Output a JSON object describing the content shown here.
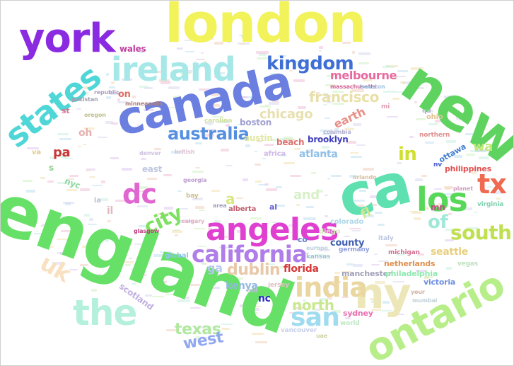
{
  "words": [
    {
      "text": "london",
      "color": "#f2f25a"
    },
    {
      "text": "york",
      "color": "#8a2be2"
    },
    {
      "text": "new",
      "color": "#5fd35f"
    },
    {
      "text": "england",
      "color": "#66e066"
    },
    {
      "text": "canada",
      "color": "#6a7fe0"
    },
    {
      "text": "states",
      "color": "#4fd6d6"
    },
    {
      "text": "ireland",
      "color": "#a6e8e8"
    },
    {
      "text": "ca",
      "color": "#5ee0b0"
    },
    {
      "text": "ontario",
      "color": "#b8ee8a"
    },
    {
      "text": "angeles",
      "color": "#e040d0"
    },
    {
      "text": "california",
      "color": "#b07ee8"
    },
    {
      "text": "los",
      "color": "#58d858"
    },
    {
      "text": "ny",
      "color": "#ece6b8"
    },
    {
      "text": "the",
      "color": "#b4f0dc"
    },
    {
      "text": "india",
      "color": "#ead6a0"
    },
    {
      "text": "kingdom",
      "color": "#3f6fd6"
    },
    {
      "text": "australia",
      "color": "#5590e0"
    },
    {
      "text": "dc",
      "color": "#e066d0"
    },
    {
      "text": "city",
      "color": "#7ee060"
    },
    {
      "text": "tx",
      "color": "#f06a50"
    },
    {
      "text": "south",
      "color": "#bfe050"
    },
    {
      "text": "san",
      "color": "#a0dcf0"
    },
    {
      "text": "francisco",
      "color": "#e8e0a8"
    },
    {
      "text": "chicago",
      "color": "#e8e0b0"
    },
    {
      "text": "in",
      "color": "#d0e030"
    },
    {
      "text": "of",
      "color": "#a0e8d8"
    },
    {
      "text": "texas",
      "color": "#b0e8a0"
    },
    {
      "text": "west",
      "color": "#90a8f0"
    },
    {
      "text": "dublin",
      "color": "#e8c8a8"
    },
    {
      "text": "north",
      "color": "#c8e890"
    },
    {
      "text": "uk",
      "color": "#f8e0c0"
    },
    {
      "text": "pa",
      "color": "#c83838"
    },
    {
      "text": "wa",
      "color": "#c0e878"
    },
    {
      "text": "melbourne",
      "color": "#e868a0"
    },
    {
      "text": "earth",
      "color": "#e89088"
    },
    {
      "text": "and",
      "color": "#d8f0c8"
    },
    {
      "text": "a",
      "color": "#d8e880"
    },
    {
      "text": "ga",
      "color": "#b8c8f0"
    },
    {
      "text": "florida",
      "color": "#d83838"
    },
    {
      "text": "kenya",
      "color": "#90b8e0"
    },
    {
      "text": "nc",
      "color": "#3030c0"
    },
    {
      "text": "boston",
      "color": "#a0a0d0"
    },
    {
      "text": "atlanta",
      "color": "#90c0e8"
    },
    {
      "text": "austin",
      "color": "#e0e8a0"
    },
    {
      "text": "beach",
      "color": "#e07070"
    },
    {
      "text": "brooklyn",
      "color": "#4040c0"
    },
    {
      "text": "county",
      "color": "#4060b0"
    },
    {
      "text": "seattle",
      "color": "#e8d080"
    },
    {
      "text": "netherlands",
      "color": "#e09050"
    },
    {
      "text": "manchester",
      "color": "#a0a0b8"
    },
    {
      "text": "philadelphia",
      "color": "#90e8b0"
    },
    {
      "text": "victoria",
      "color": "#7090e0"
    },
    {
      "text": "sydney",
      "color": "#e870b0"
    },
    {
      "text": "scotland",
      "color": "#c0b0e0"
    },
    {
      "text": "philippines",
      "color": "#e05050"
    },
    {
      "text": "ottawa",
      "color": "#4080d0"
    },
    {
      "text": "wales",
      "color": "#c040a0"
    },
    {
      "text": "oh",
      "color": "#e8b0b0"
    },
    {
      "text": "on",
      "color": "#e07060"
    },
    {
      "text": "mn",
      "color": "#c05080"
    },
    {
      "text": "fl",
      "color": "#d0e890"
    },
    {
      "text": "il",
      "color": "#e0b8c0"
    },
    {
      "text": "nyc",
      "color": "#90d8a0"
    },
    {
      "text": "colorado",
      "color": "#b0d8e8"
    },
    {
      "text": "alberta",
      "color": "#c06070"
    },
    {
      "text": "al",
      "color": "#6060d0"
    },
    {
      "text": "michigan",
      "color": "#d07090"
    },
    {
      "text": "kansas",
      "color": "#a0c0d0"
    },
    {
      "text": "virginia",
      "color": "#80d0b0"
    },
    {
      "text": "ohio",
      "color": "#e0c090"
    },
    {
      "text": "africa",
      "color": "#d0b8e8"
    },
    {
      "text": "germany",
      "color": "#90a0e0"
    },
    {
      "text": "vancouver",
      "color": "#c8d0e8"
    },
    {
      "text": "world",
      "color": "#c0e8c8"
    },
    {
      "text": "diego",
      "color": "#d8e8c0"
    },
    {
      "text": "md",
      "color": "#c0c0d8"
    },
    {
      "text": "jersey",
      "color": "#e0c0c0"
    },
    {
      "text": "carolina",
      "color": "#d0e0a0"
    },
    {
      "text": "co",
      "color": "#6080d0"
    },
    {
      "text": "global",
      "color": "#90c8e8"
    },
    {
      "text": "northern",
      "color": "#e09090"
    },
    {
      "text": "nv",
      "color": "#5060d0"
    },
    {
      "text": "east",
      "color": "#c0c8e0"
    },
    {
      "text": "s",
      "color": "#90d090"
    },
    {
      "text": "st",
      "color": "#e07090"
    },
    {
      "text": "va",
      "color": "#e0d090"
    },
    {
      "text": "planet",
      "color": "#d0a0c0"
    },
    {
      "text": "vegas",
      "color": "#c0e0c0"
    },
    {
      "text": "glasgow",
      "color": "#c04080"
    },
    {
      "text": "bay",
      "color": "#d0c090"
    },
    {
      "text": "calgary",
      "color": "#e0b0c0"
    },
    {
      "text": "area",
      "color": "#a0a0c0"
    },
    {
      "text": "italy",
      "color": "#c0c8e0"
    },
    {
      "text": "mumbai",
      "color": "#c0d0d8"
    },
    {
      "text": "denver",
      "color": "#d0c0e0"
    },
    {
      "text": "minneapolis",
      "color": "#b08080"
    },
    {
      "text": "oregon",
      "color": "#c0c090"
    },
    {
      "text": "massachusetts",
      "color": "#d06090"
    },
    {
      "text": "republic",
      "color": "#b0a0c0"
    },
    {
      "text": "houston",
      "color": "#a0c0e0"
    },
    {
      "text": "columbia",
      "color": "#b0b0d0"
    },
    {
      "text": "pakistan",
      "color": "#a0a0b0"
    },
    {
      "text": "mi",
      "color": "#e0a0b0"
    },
    {
      "text": "qu",
      "color": "#b0b0d0"
    },
    {
      "text": "la",
      "color": "#c0c0e0"
    },
    {
      "text": "uae",
      "color": "#d0d0a0"
    },
    {
      "text": "british",
      "color": "#e0c0d0"
    },
    {
      "text": "your",
      "color": "#d0b0a0"
    },
    {
      "text": "europe",
      "color": "#c0d0e0"
    },
    {
      "text": "georgia",
      "color": "#c0a0d0"
    },
    {
      "text": "orlando",
      "color": "#d8c0a0"
    }
  ]
}
